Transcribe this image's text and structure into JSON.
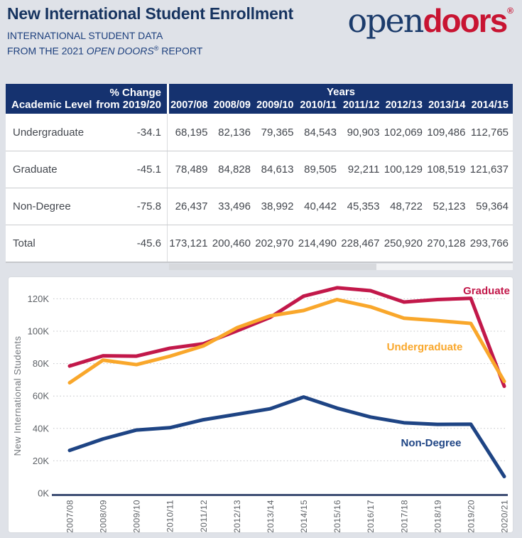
{
  "header": {
    "title": "New International Student Enrollment",
    "subtitle_line1": "INTERNATIONAL STUDENT DATA",
    "subtitle_line2": {
      "prefix": "FROM THE 2021 ",
      "italic": "OPEN DOORS",
      "registered": "®",
      "suffix": " REPORT"
    },
    "logo": {
      "open": "open",
      "doors": "doors",
      "registered": "®"
    }
  },
  "table": {
    "col_academic_level": "Academic Level",
    "col_pct_change": [
      "% Change",
      "from 2019/20"
    ],
    "years_header": "Years",
    "visible_year_columns": [
      "2007/08",
      "2008/09",
      "2009/10",
      "2010/11",
      "2011/12",
      "2012/13",
      "2013/14",
      "2014/15"
    ],
    "rows": [
      {
        "label": "Undergraduate",
        "pct_change": "-34.1",
        "values": [
          "68,195",
          "82,136",
          "79,365",
          "84,543",
          "90,903",
          "102,069",
          "109,486",
          "112,765"
        ]
      },
      {
        "label": "Graduate",
        "pct_change": "-45.1",
        "values": [
          "78,489",
          "84,828",
          "84,613",
          "89,505",
          "92,211",
          "100,129",
          "108,519",
          "121,637"
        ]
      },
      {
        "label": "Non-Degree",
        "pct_change": "-75.8",
        "values": [
          "26,437",
          "33,496",
          "38,992",
          "40,442",
          "45,353",
          "48,722",
          "52,123",
          "59,364"
        ]
      },
      {
        "label": "Total",
        "pct_change": "-45.6",
        "values": [
          "173,121",
          "200,460",
          "202,970",
          "214,490",
          "228,467",
          "250,920",
          "270,128",
          "293,766"
        ]
      }
    ]
  },
  "chart_data": {
    "type": "line",
    "title": "",
    "xlabel": "",
    "ylabel": "New International Students",
    "x": [
      "2007/08",
      "2008/09",
      "2009/10",
      "2010/11",
      "2011/12",
      "2012/13",
      "2013/14",
      "2014/15",
      "2015/16",
      "2016/17",
      "2017/18",
      "2018/19",
      "2019/20",
      "2020/21"
    ],
    "ylim": [
      0,
      130000
    ],
    "yticks": [
      0,
      20000,
      40000,
      60000,
      80000,
      100000,
      120000
    ],
    "ytick_labels": [
      "0K",
      "20K",
      "40K",
      "60K",
      "80K",
      "100K",
      "120K"
    ],
    "grid": "horizontal-dotted",
    "legend_position": "inline-labels-on-chart",
    "series": [
      {
        "name": "Graduate",
        "color": "#c2184a",
        "values": [
          78489,
          84828,
          84613,
          89505,
          92211,
          100129,
          108519,
          121637,
          126800,
          125000,
          118000,
          119500,
          120300,
          66000
        ]
      },
      {
        "name": "Undergraduate",
        "color": "#f9a72b",
        "values": [
          68195,
          82136,
          79365,
          84543,
          90903,
          102069,
          109486,
          112765,
          119500,
          115000,
          108000,
          106500,
          104800,
          69000
        ]
      },
      {
        "name": "Non-Degree",
        "color": "#1e4484",
        "values": [
          26437,
          33496,
          38992,
          40442,
          45353,
          48722,
          52123,
          59364,
          52500,
          47000,
          43500,
          42500,
          42600,
          10300
        ]
      }
    ]
  },
  "colors": {
    "page_background": "#dfe2e8",
    "table_header_background": "#15326f",
    "title_text": "#16335f",
    "subtitle_text": "#1c3f7d",
    "logo_navy": "#1b3b6b",
    "logo_red": "#c81432",
    "axis_line": "#3e4e74",
    "row_text": "#43474e"
  }
}
